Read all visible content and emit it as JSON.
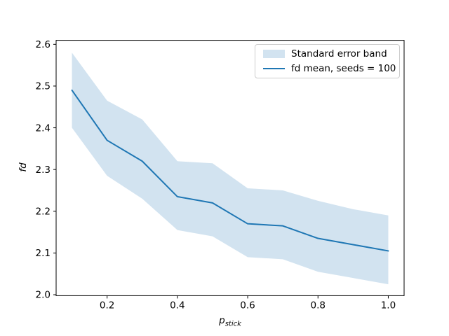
{
  "figure": {
    "background": "#ffffff"
  },
  "chart_data": {
    "type": "line",
    "title": "",
    "xlabel_base": "p",
    "xlabel_sub": "stick",
    "ylabel": "fd",
    "x": [
      0.1,
      0.2,
      0.3,
      0.4,
      0.5,
      0.6,
      0.7,
      0.8,
      0.9,
      1.0
    ],
    "series": [
      {
        "name": "fd mean, seeds = 100",
        "color": "#1f77b4",
        "values": [
          2.49,
          2.37,
          2.32,
          2.235,
          2.22,
          2.17,
          2.165,
          2.135,
          2.12,
          2.105
        ]
      }
    ],
    "band": {
      "name": "Standard error band",
      "fill": "#d2e3f0",
      "upper": [
        2.58,
        2.465,
        2.42,
        2.32,
        2.315,
        2.255,
        2.25,
        2.225,
        2.205,
        2.19
      ],
      "lower": [
        2.4,
        2.285,
        2.23,
        2.155,
        2.14,
        2.09,
        2.085,
        2.055,
        2.04,
        2.025
      ]
    },
    "xticks": [
      0.2,
      0.4,
      0.6,
      0.8,
      1.0
    ],
    "xtick_labels": [
      "0.2",
      "0.4",
      "0.6",
      "0.8",
      "1.0"
    ],
    "yticks": [
      2.0,
      2.1,
      2.2,
      2.3,
      2.4,
      2.5,
      2.6
    ],
    "ytick_labels": [
      "2.0",
      "2.1",
      "2.2",
      "2.3",
      "2.4",
      "2.5",
      "2.6"
    ],
    "xlim": [
      0.055,
      1.045
    ],
    "ylim": [
      1.9977,
      2.6096
    ],
    "grid": false,
    "legend_position": "upper right",
    "axis_color": "#000000",
    "legend_border_color": "#cccccc"
  }
}
